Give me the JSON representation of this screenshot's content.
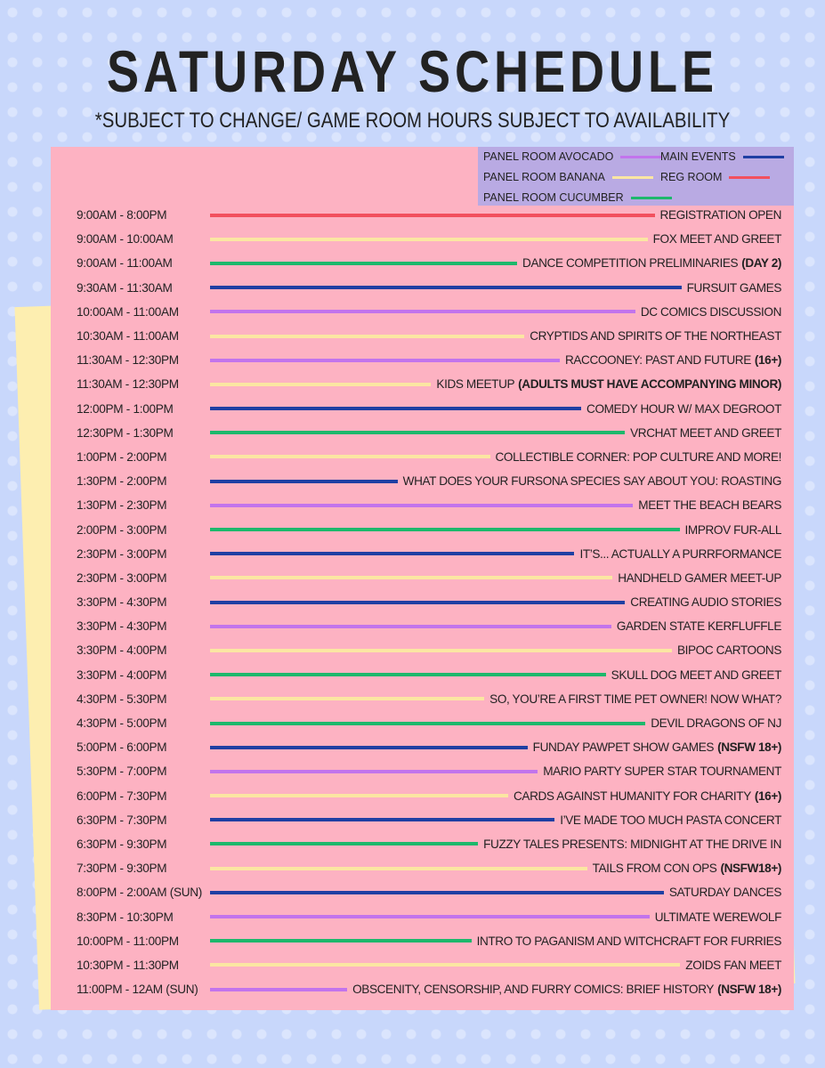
{
  "header": {
    "title": "SATURDAY SCHEDULE",
    "subtitle": "*SUBJECT TO CHANGE/ GAME ROOM HOURS SUBJECT TO AVAILABILITY"
  },
  "legend": [
    {
      "label": "PANEL ROOM AVOCADO",
      "color": "#c274ec"
    },
    {
      "label": "MAIN EVENTS",
      "color": "#1f3fa3"
    },
    {
      "label": "PANEL ROOM BANANA",
      "color": "#fbe6a2"
    },
    {
      "label": "REG ROOM",
      "color": "#f2505e"
    },
    {
      "label": "PANEL ROOM CUCUMBER",
      "color": "#1db86c"
    }
  ],
  "rows": [
    {
      "time": "9:00AM - 8:00PM",
      "event": "REGISTRATION OPEN",
      "color": "#f2505e"
    },
    {
      "time": "9:00AM - 10:00AM",
      "event": "FOX MEET AND GREET",
      "color": "#fbe6a2"
    },
    {
      "time": "9:00AM - 11:00AM",
      "event": "DANCE COMPETITION PRELIMINARIES",
      "note": "(DAY 2)",
      "color": "#1db86c"
    },
    {
      "time": "9:30AM - 11:30AM",
      "event": "FURSUIT GAMES",
      "color": "#1f3fa3"
    },
    {
      "time": "10:00AM - 11:00AM",
      "event": "DC COMICS DISCUSSION",
      "color": "#c274ec"
    },
    {
      "time": "10:30AM - 11:00AM",
      "event": "CRYPTIDS AND SPIRITS OF THE NORTHEAST",
      "color": "#fbe6a2"
    },
    {
      "time": "11:30AM - 12:30PM",
      "event": "RACCOONEY: PAST AND FUTURE",
      "note": "(16+)",
      "color": "#c274ec"
    },
    {
      "time": "11:30AM - 12:30PM",
      "event": "KIDS MEETUP",
      "note": "(ADULTS MUST HAVE ACCOMPANYING MINOR)",
      "color": "#fbe6a2"
    },
    {
      "time": "12:00PM - 1:00PM",
      "event": "COMEDY HOUR W/ MAX DEGROOT",
      "color": "#1f3fa3"
    },
    {
      "time": "12:30PM - 1:30PM",
      "event": "VRCHAT MEET AND GREET",
      "color": "#1db86c"
    },
    {
      "time": "1:00PM - 2:00PM",
      "event": "COLLECTIBLE CORNER: POP CULTURE AND MORE!",
      "color": "#fbe6a2"
    },
    {
      "time": "1:30PM - 2:00PM",
      "event": "WHAT DOES YOUR FURSONA SPECIES SAY ABOUT YOU: ROASTING",
      "color": "#1f3fa3"
    },
    {
      "time": "1:30PM - 2:30PM",
      "event": "MEET THE BEACH BEARS",
      "color": "#c274ec"
    },
    {
      "time": "2:00PM - 3:00PM",
      "event": "IMPROV FUR-ALL",
      "color": "#1db86c"
    },
    {
      "time": "2:30PM - 3:00PM",
      "event": "IT’S... ACTUALLY A PURRFORMANCE",
      "color": "#1f3fa3"
    },
    {
      "time": "2:30PM - 3:00PM",
      "event": "HANDHELD GAMER MEET-UP",
      "color": "#fbe6a2"
    },
    {
      "time": "3:30PM - 4:30PM",
      "event": "CREATING AUDIO STORIES",
      "color": "#1f3fa3"
    },
    {
      "time": "3:30PM - 4:30PM",
      "event": "GARDEN STATE KERFLUFFLE",
      "color": "#c274ec"
    },
    {
      "time": "3:30PM - 4:00PM",
      "event": "BIPOC CARTOONS",
      "color": "#fbe6a2"
    },
    {
      "time": "3:30PM - 4:00PM",
      "event": "SKULL DOG MEET AND GREET",
      "color": "#1db86c"
    },
    {
      "time": "4:30PM - 5:30PM",
      "event": "SO, YOU’RE A FIRST TIME PET OWNER! NOW WHAT?",
      "color": "#fbe6a2"
    },
    {
      "time": "4:30PM - 5:00PM",
      "event": "DEVIL DRAGONS OF NJ",
      "color": "#1db86c"
    },
    {
      "time": "5:00PM - 6:00PM",
      "event": "FUNDAY PAWPET SHOW GAMES",
      "note": "(NSFW 18+)",
      "color": "#1f3fa3"
    },
    {
      "time": "5:30PM - 7:00PM",
      "event": "MARIO PARTY SUPER STAR TOURNAMENT",
      "color": "#c274ec"
    },
    {
      "time": "6:00PM - 7:30PM",
      "event": "CARDS AGAINST HUMANITY FOR CHARITY",
      "note": "(16+)",
      "color": "#fbe6a2"
    },
    {
      "time": "6:30PM - 7:30PM",
      "event": "I’VE MADE TOO MUCH PASTA CONCERT",
      "color": "#1f3fa3"
    },
    {
      "time": "6:30PM - 9:30PM",
      "event": "FUZZY TALES PRESENTS: MIDNIGHT AT THE DRIVE IN",
      "color": "#1db86c"
    },
    {
      "time": "7:30PM - 9:30PM",
      "event": "TAILS FROM CON OPS",
      "note": "(NSFW18+)",
      "color": "#fbe6a2"
    },
    {
      "time": "8:00PM - 2:00AM (SUN)",
      "event": "SATURDAY DANCES",
      "color": "#1f3fa3"
    },
    {
      "time": "8:30PM - 10:30PM",
      "event": "ULTIMATE WEREWOLF",
      "color": "#c274ec"
    },
    {
      "time": "10:00PM - 11:00PM",
      "event": "INTRO TO PAGANISM AND WITCHCRAFT FOR FURRIES",
      "color": "#1db86c"
    },
    {
      "time": "10:30PM - 11:30PM",
      "event": "ZOIDS FAN MEET",
      "color": "#fbe6a2"
    },
    {
      "time": "11:00PM - 12AM (SUN)",
      "event": "OBSCENITY, CENSORSHIP, AND FURRY COMICS: BRIEF HISTORY",
      "note": "(NSFW 18+)",
      "color": "#c274ec"
    }
  ]
}
